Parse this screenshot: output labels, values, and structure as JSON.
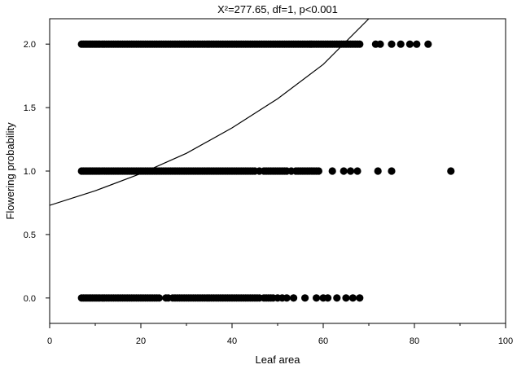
{
  "chart_data": {
    "type": "scatter",
    "title": "X²=277.65, df=1, p<0.001",
    "xlabel": "Leaf area",
    "ylabel": "Flowering probability",
    "xlim": [
      0,
      100
    ],
    "ylim": [
      -0.2,
      2.2
    ],
    "x_ticks": [
      0,
      20,
      40,
      60,
      80,
      100
    ],
    "x_tick_labels": [
      "0",
      "20",
      "40",
      "60",
      "80",
      "100"
    ],
    "x_minor_step": 10,
    "y_ticks": [
      0,
      0.5,
      1,
      1.5,
      2
    ],
    "y_tick_labels": [
      "0.0",
      "0.5",
      "1.0",
      "1.5",
      "2.0"
    ],
    "grid": false,
    "legend": "none",
    "colors": {
      "points": "#000000",
      "curve": "#000000",
      "axes": "#000000"
    },
    "series": [
      {
        "y": 2,
        "x": [
          7,
          7.4,
          7.8,
          8.2,
          8.6,
          9,
          9.4,
          9.8,
          10.2,
          10.6,
          11,
          11.5,
          12,
          12.5,
          13,
          13.5,
          14,
          14.5,
          15,
          15.5,
          16,
          16.5,
          17,
          17.5,
          18,
          18.5,
          19,
          19.5,
          20,
          20.5,
          21,
          21.5,
          22,
          22.5,
          23,
          23.5,
          24,
          24.5,
          25,
          25.5,
          26,
          26.5,
          27,
          27.5,
          28,
          28.5,
          29,
          29.5,
          30,
          30.5,
          31,
          31.5,
          32,
          32.5,
          33,
          33.5,
          34,
          34.5,
          35,
          35.5,
          36,
          36.5,
          37,
          37.5,
          38,
          38.5,
          39,
          39.5,
          40,
          40.5,
          41,
          41.5,
          42,
          42.5,
          43,
          43.5,
          44,
          44.5,
          45,
          45.5,
          46,
          46.5,
          47,
          47.5,
          48,
          48.5,
          49,
          49.5,
          50,
          50.5,
          51,
          51.5,
          52,
          52.5,
          53,
          53.5,
          54,
          54.5,
          55,
          55.5,
          56,
          56.5,
          57,
          57.5,
          58,
          58.5,
          59,
          59.5,
          60,
          60.5,
          61,
          61.5,
          62,
          62.5,
          63,
          63.5,
          64,
          64.5,
          65,
          65.5,
          66,
          66.5,
          67,
          67.5,
          68,
          71.5,
          72.5,
          75,
          77,
          79,
          80.5,
          83
        ]
      },
      {
        "y": 1,
        "x": [
          7,
          7.4,
          7.8,
          8.2,
          8.6,
          9,
          9.4,
          9.8,
          10.2,
          10.6,
          11,
          11.5,
          12,
          12.5,
          13,
          13.5,
          14,
          14.5,
          15,
          15.5,
          16,
          16.5,
          17,
          17.5,
          18,
          18.5,
          19,
          19.5,
          20,
          20.5,
          21,
          21.5,
          22,
          22.5,
          23,
          23.5,
          24,
          24.5,
          25,
          25.5,
          26,
          26.5,
          27,
          27.5,
          28,
          28.5,
          29,
          29.5,
          30,
          30.5,
          31,
          31.5,
          32,
          32.5,
          33,
          33.5,
          34,
          34.5,
          35,
          35.5,
          36,
          36.5,
          37,
          37.5,
          38,
          38.5,
          39,
          39.5,
          40,
          40.5,
          41,
          41.5,
          42,
          42.5,
          43,
          43.5,
          44,
          44.5,
          45,
          46,
          47,
          47.5,
          48,
          48.5,
          49,
          49.5,
          50,
          50.5,
          51,
          51.5,
          52,
          53,
          54,
          54.5,
          55,
          55.5,
          56,
          56.5,
          57,
          57.5,
          58,
          58.5,
          59,
          62,
          64.5,
          66,
          67.5,
          72,
          75,
          88
        ]
      },
      {
        "y": 0,
        "x": [
          7,
          7.4,
          7.8,
          8.2,
          8.6,
          9,
          9.4,
          9.8,
          10.2,
          10.6,
          11,
          11.5,
          12,
          12.5,
          13,
          13.5,
          14,
          14.5,
          15,
          15.5,
          16,
          16.5,
          17,
          17.5,
          18,
          18.5,
          19,
          19.5,
          20,
          20.5,
          21,
          21.5,
          22,
          22.5,
          23,
          23.5,
          24,
          25.5,
          26,
          27,
          27.5,
          28,
          28.5,
          29,
          29.5,
          30,
          30.5,
          31,
          31.5,
          32,
          32.5,
          33,
          33.5,
          34,
          34.5,
          35,
          35.5,
          36,
          36.5,
          37,
          37.5,
          38,
          38.5,
          39,
          39.5,
          40,
          40.5,
          41,
          41.5,
          42,
          42.5,
          43,
          43.5,
          44,
          44.5,
          45,
          45.5,
          46,
          47,
          47.5,
          48,
          48.5,
          49,
          50,
          51,
          52,
          53.5,
          56,
          58.5,
          60,
          61,
          63,
          65,
          66.5,
          68
        ]
      }
    ],
    "fit_curve": {
      "type": "exponential",
      "x": [
        0,
        10,
        20,
        30,
        40,
        50,
        60,
        70
      ],
      "y": [
        0.73,
        0.845,
        0.98,
        1.14,
        1.34,
        1.57,
        1.84,
        2.2
      ]
    }
  }
}
